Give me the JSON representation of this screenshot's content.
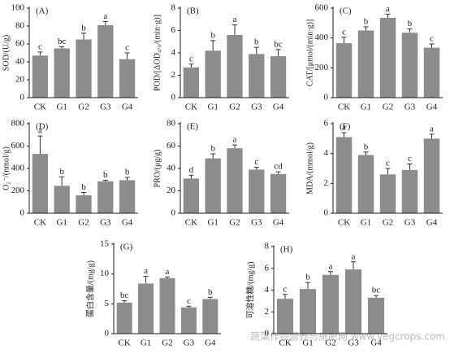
{
  "chart_data": [
    {
      "type": "bar",
      "panel_label": "(A)",
      "y_label": "SOD/(U/g)",
      "categories": [
        "CK",
        "G1",
        "G2",
        "G3",
        "G4"
      ],
      "values": [
        47,
        55,
        65,
        81,
        43
      ],
      "errors": [
        4,
        2,
        7,
        4,
        7
      ],
      "letters": [
        "c",
        "bc",
        "b",
        "a",
        "c"
      ],
      "ylim": [
        0,
        100
      ],
      "yticks": [
        0,
        20,
        40,
        60,
        80,
        100
      ],
      "color": "#8c8c8c"
    },
    {
      "type": "bar",
      "panel_label": "(B)",
      "y_label": "POD/[ΔOD₄₇₀/(min·g)]",
      "categories": [
        "CK",
        "G1",
        "G2",
        "G3",
        "G4"
      ],
      "values": [
        2.7,
        4.2,
        5.6,
        3.9,
        3.7
      ],
      "errors": [
        0.3,
        0.9,
        0.9,
        0.6,
        0.6
      ],
      "letters": [
        "c",
        "b",
        "a",
        "b",
        "bc"
      ],
      "ylim": [
        0,
        8
      ],
      "yticks": [
        0,
        2,
        4,
        6,
        8
      ],
      "color": "#8c8c8c"
    },
    {
      "type": "bar",
      "panel_label": "(C)",
      "y_label": "CAT/[μmol/(min·g)]",
      "categories": [
        "CK",
        "G1",
        "G2",
        "G3",
        "G4"
      ],
      "values": [
        365,
        450,
        535,
        435,
        335
      ],
      "errors": [
        40,
        25,
        25,
        25,
        25
      ],
      "letters": [
        "c",
        "b",
        "a",
        "b",
        "c"
      ],
      "ylim": [
        0,
        600
      ],
      "yticks": [
        0,
        200,
        400,
        600
      ],
      "color": "#8c8c8c"
    },
    {
      "type": "bar",
      "panel_label": "(D)",
      "y_label": "O₂⁻/(nmol/g)",
      "categories": [
        "CK",
        "G1",
        "G2",
        "G3",
        "G4"
      ],
      "values": [
        530,
        245,
        160,
        285,
        295
      ],
      "errors": [
        160,
        80,
        25,
        10,
        25
      ],
      "letters": [
        "a",
        "b",
        "b",
        "b",
        "b"
      ],
      "ylim": [
        0,
        800
      ],
      "yticks": [
        0,
        200,
        400,
        600,
        800
      ],
      "color": "#8c8c8c"
    },
    {
      "type": "bar",
      "panel_label": "(E)",
      "y_label": "PRO/(μg/g)",
      "categories": [
        "CK",
        "G1",
        "G2",
        "G3",
        "G4"
      ],
      "values": [
        31,
        49,
        58,
        39,
        35
      ],
      "errors": [
        3,
        4,
        3,
        2,
        2
      ],
      "letters": [
        "d",
        "b",
        "a",
        "c",
        "cd"
      ],
      "ylim": [
        0,
        80
      ],
      "yticks": [
        0,
        20,
        40,
        60,
        80
      ],
      "color": "#8c8c8c"
    },
    {
      "type": "bar",
      "panel_label": "(F)",
      "y_label": "MDA/(mmol/g)",
      "categories": [
        "CK",
        "G1",
        "G2",
        "G3",
        "G4"
      ],
      "values": [
        5.1,
        3.9,
        2.6,
        2.9,
        5.0
      ],
      "errors": [
        0.3,
        0.2,
        0.4,
        0.4,
        0.3
      ],
      "letters": [
        "a",
        "b",
        "c",
        "c",
        "a"
      ],
      "ylim": [
        0,
        6
      ],
      "yticks": [
        0,
        2,
        4,
        6
      ],
      "color": "#8c8c8c"
    },
    {
      "type": "bar",
      "panel_label": "(G)",
      "y_label": "蛋白含量/(mg/g)",
      "categories": [
        "CK",
        "G1",
        "G2",
        "G3",
        "G4"
      ],
      "values": [
        5.2,
        8.4,
        9.3,
        4.4,
        5.8
      ],
      "errors": [
        0.3,
        1.2,
        0.2,
        0.2,
        0.3
      ],
      "letters": [
        "bc",
        "a",
        "a",
        "c",
        "b"
      ],
      "ylim": [
        0,
        15
      ],
      "yticks": [
        0,
        5,
        10,
        15
      ],
      "color": "#8c8c8c"
    },
    {
      "type": "bar",
      "panel_label": "(H)",
      "y_label": "可溶性糖/(mg/g)",
      "categories": [
        "CK",
        "G1",
        "G2",
        "G3",
        "G4"
      ],
      "values": [
        3.2,
        4.1,
        5.4,
        5.9,
        3.3
      ],
      "errors": [
        0.4,
        0.6,
        0.3,
        0.7,
        0.2
      ],
      "letters": [
        "c",
        "b",
        "a",
        "a",
        "bc"
      ],
      "ylim": [
        0,
        8
      ],
      "yticks": [
        0,
        2,
        4,
        6,
        8
      ],
      "color": "#8c8c8c"
    }
  ],
  "watermark": "蔬菜作物营养与施肥网 www.vegcrops.com"
}
